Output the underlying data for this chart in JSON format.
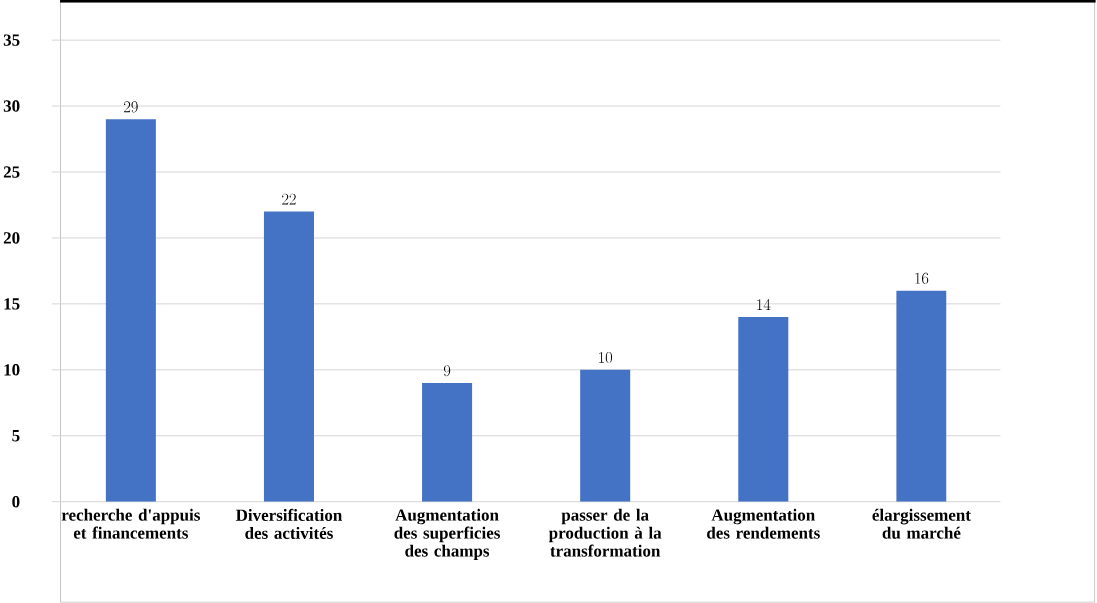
{
  "chart_data": {
    "type": "bar",
    "categories": [
      "recherche d'appuis et financements",
      "Diversification des activités",
      "Augmentation des superficies des champs",
      "passer de la production à la transformation",
      "Augmentation des rendements",
      "élargissement du marché"
    ],
    "values": [
      29,
      22,
      9,
      10,
      14,
      16
    ],
    "color": "#4472c4",
    "ylim": [
      0,
      35
    ],
    "yticks": [
      0,
      5,
      10,
      15,
      20,
      25,
      30,
      35
    ],
    "grid": "y",
    "data_labels": true
  }
}
